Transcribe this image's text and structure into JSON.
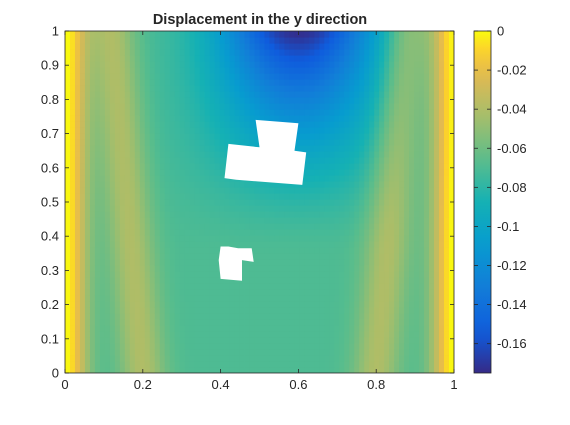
{
  "chart_data": {
    "type": "heatmap",
    "title": "Displacement in the y direction",
    "xlabel": "",
    "ylabel": "",
    "xlim": [
      0,
      1
    ],
    "ylim": [
      0,
      1
    ],
    "x_ticks": [
      "0",
      "0.2",
      "0.4",
      "0.6",
      "0.8",
      "1"
    ],
    "y_ticks": [
      "0",
      "0.1",
      "0.2",
      "0.3",
      "0.4",
      "0.5",
      "0.6",
      "0.7",
      "0.8",
      "0.9",
      "1"
    ],
    "colorbar": {
      "colormap": "parula",
      "range": [
        -0.175,
        0
      ],
      "ticks": [
        "0",
        "-0.02",
        "-0.04",
        "-0.06",
        "-0.08",
        "-0.1",
        "-0.12",
        "-0.14",
        "-0.16"
      ],
      "tick_values": [
        0,
        -0.02,
        -0.04,
        -0.06,
        -0.08,
        -0.1,
        -0.12,
        -0.14,
        -0.16
      ]
    },
    "grid": false,
    "field_description": "Near 0 (yellow) along left and right edges, about -0.04 bands near x=0.12 and x=0.88, about -0.07 in the central region, decreasing to about -0.175 at the top near x=0.6",
    "holes": [
      {
        "name": "upper-block",
        "polygon": [
          [
            0.49,
            0.74
          ],
          [
            0.6,
            0.73
          ],
          [
            0.59,
            0.65
          ],
          [
            0.62,
            0.645
          ],
          [
            0.61,
            0.55
          ],
          [
            0.44,
            0.565
          ],
          [
            0.41,
            0.57
          ],
          [
            0.42,
            0.67
          ],
          [
            0.5,
            0.66
          ]
        ]
      },
      {
        "name": "lower-block",
        "polygon": [
          [
            0.4,
            0.37
          ],
          [
            0.42,
            0.37
          ],
          [
            0.445,
            0.365
          ],
          [
            0.48,
            0.365
          ],
          [
            0.485,
            0.325
          ],
          [
            0.455,
            0.33
          ],
          [
            0.455,
            0.27
          ],
          [
            0.4,
            0.275
          ],
          [
            0.395,
            0.33
          ]
        ]
      }
    ]
  }
}
